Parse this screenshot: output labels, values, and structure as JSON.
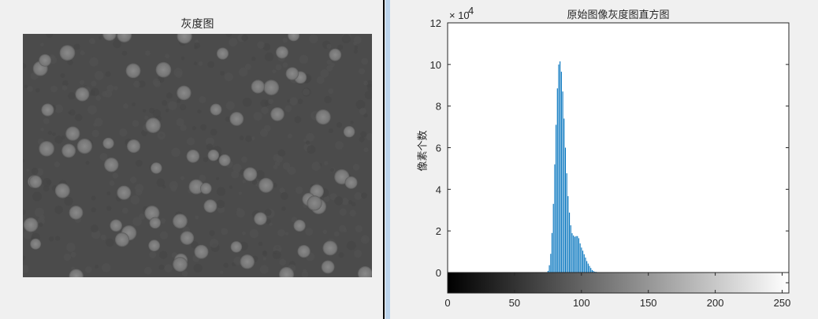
{
  "left_panel": {
    "title": "灰度图"
  },
  "chart_data": {
    "type": "bar",
    "title": "原始图像灰度图直方图",
    "xlabel": "",
    "ylabel": "像素个数",
    "y_exponent_label": "× 10",
    "y_exponent": "4",
    "xlim": [
      0,
      255
    ],
    "ylim": [
      0,
      120000
    ],
    "xticks": [
      0,
      50,
      100,
      150,
      200,
      250
    ],
    "yticks": [
      0,
      2,
      4,
      6,
      8,
      10,
      12
    ],
    "bar_color": "#0072bd",
    "colorbar": "grayscale 0-255 below x-axis",
    "x": [
      75,
      76,
      77,
      78,
      79,
      80,
      81,
      82,
      83,
      84,
      85,
      86,
      87,
      88,
      89,
      90,
      91,
      92,
      93,
      94,
      95,
      96,
      97,
      98,
      99,
      100,
      101,
      102,
      103,
      104,
      105,
      106,
      107,
      108,
      109,
      110,
      111,
      112
    ],
    "values": [
      800,
      3500,
      9000,
      19000,
      33000,
      52000,
      71000,
      88500,
      100000,
      101500,
      96500,
      87000,
      74000,
      60000,
      47700,
      36700,
      28800,
      22700,
      18900,
      17800,
      17200,
      17500,
      17500,
      16500,
      14000,
      12000,
      10500,
      8800,
      7200,
      5500,
      4300,
      3200,
      2200,
      1200,
      800,
      400,
      300,
      200
    ]
  }
}
